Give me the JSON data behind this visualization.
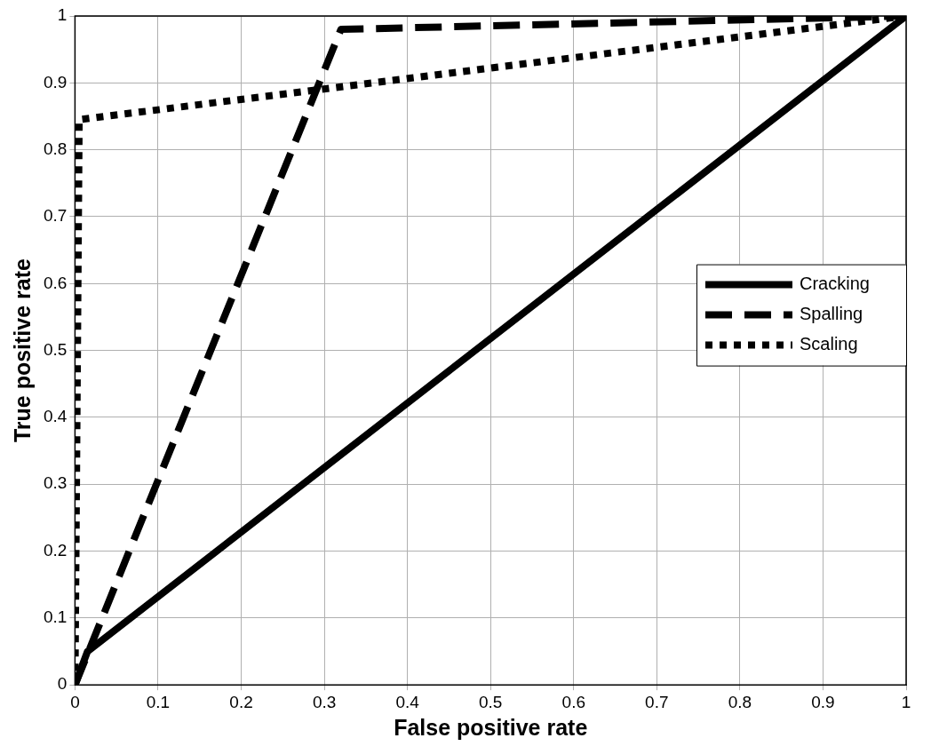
{
  "chart_data": {
    "type": "line",
    "xlabel": "False positive rate",
    "ylabel": "True positive rate",
    "xlim": [
      0,
      1
    ],
    "ylim": [
      0,
      1
    ],
    "xticks": [
      0,
      0.1,
      0.2,
      0.3,
      0.4,
      0.5,
      0.6,
      0.7,
      0.8,
      0.9,
      1
    ],
    "yticks": [
      0,
      0.1,
      0.2,
      0.3,
      0.4,
      0.5,
      0.6,
      0.7,
      0.8,
      0.9,
      1
    ],
    "grid": true,
    "legend": "right",
    "marker": "none",
    "series": [
      {
        "name": "Cracking",
        "color": "#000000",
        "line_style": "solid",
        "x": [
          0,
          0.015,
          1
        ],
        "values": [
          0,
          0.05,
          1
        ]
      },
      {
        "name": "Spalling",
        "color": "#000000",
        "line_style": "dashed",
        "x": [
          0,
          0.32,
          1
        ],
        "values": [
          0,
          0.98,
          1
        ]
      },
      {
        "name": "Scaling",
        "color": "#000000",
        "line_style": "dotted",
        "x": [
          0,
          0.005,
          1
        ],
        "values": [
          0,
          0.845,
          1
        ]
      }
    ]
  }
}
